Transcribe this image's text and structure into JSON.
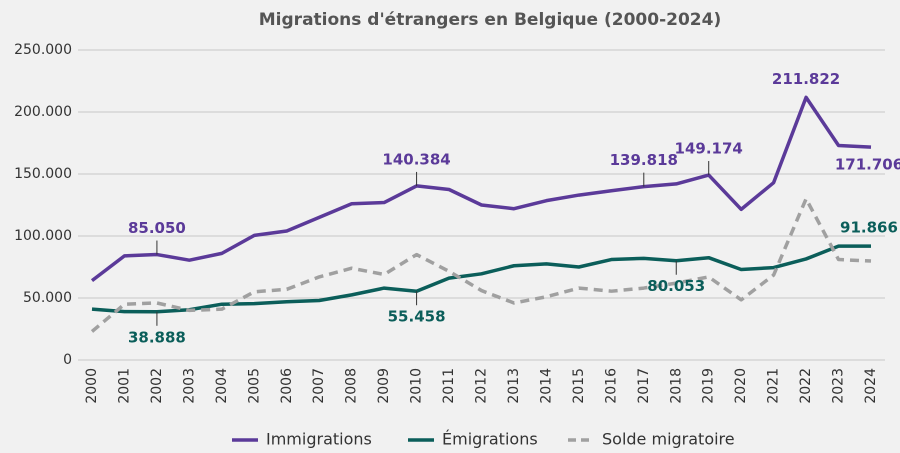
{
  "chart_data": {
    "type": "line",
    "title": "Migrations d'étrangers en Belgique (2000-2024)",
    "categories": [
      "2000",
      "2001",
      "2002",
      "2003",
      "2004",
      "2005",
      "2006",
      "2007",
      "2008",
      "2009",
      "2010",
      "2011",
      "2012",
      "2013",
      "2014",
      "2015",
      "2016",
      "2017",
      "2018",
      "2019",
      "2020",
      "2021",
      "2022",
      "2023",
      "2024"
    ],
    "series": [
      {
        "name": "Immigrations",
        "color": "#5b3a99",
        "dashed": false,
        "values": [
          64000,
          84000,
          85050,
          80500,
          86000,
          100500,
          104000,
          115000,
          126000,
          127000,
          140384,
          137500,
          125000,
          122000,
          128500,
          133000,
          136500,
          139818,
          142000,
          149174,
          121500,
          143000,
          211822,
          173000,
          171706
        ],
        "value_labels": [
          null,
          null,
          "85.050",
          null,
          null,
          null,
          null,
          null,
          null,
          null,
          "140.384",
          null,
          null,
          null,
          null,
          null,
          null,
          "139.818",
          null,
          "149.174",
          null,
          null,
          "211.822",
          null,
          "171.706"
        ]
      },
      {
        "name": "Émigrations",
        "color": "#0b5e5a",
        "dashed": false,
        "values": [
          41000,
          39000,
          38888,
          40500,
          45000,
          45500,
          47000,
          48000,
          52500,
          58000,
          55458,
          66000,
          69500,
          76000,
          77500,
          75000,
          81000,
          82000,
          80053,
          82500,
          73000,
          74500,
          81500,
          91800,
          91866
        ],
        "value_labels": [
          null,
          null,
          "38.888",
          null,
          null,
          null,
          null,
          null,
          null,
          null,
          "55.458",
          null,
          null,
          null,
          null,
          null,
          null,
          null,
          "80.053",
          null,
          null,
          null,
          null,
          null,
          "91.866"
        ]
      },
      {
        "name": "Solde migratoire",
        "color": "#a0a0a0",
        "dashed": true,
        "values": [
          23000,
          45000,
          46000,
          40000,
          41000,
          55000,
          57000,
          67000,
          74000,
          69000,
          85000,
          71500,
          56000,
          46000,
          51000,
          58000,
          55500,
          58000,
          62000,
          67000,
          48500,
          68500,
          130000,
          81000,
          79800
        ]
      }
    ],
    "ylim": [
      0,
      250000
    ],
    "yticks": [
      0,
      {
        "value": 50000,
        "label": "50.000"
      },
      {
        "value": 100000,
        "label": "100.000"
      },
      {
        "value": 150000,
        "label": "150.000"
      },
      {
        "value": 200000,
        "label": "200.000"
      },
      {
        "value": 250000,
        "label": "250.000"
      }
    ],
    "grid": true,
    "legend": "bottom"
  }
}
